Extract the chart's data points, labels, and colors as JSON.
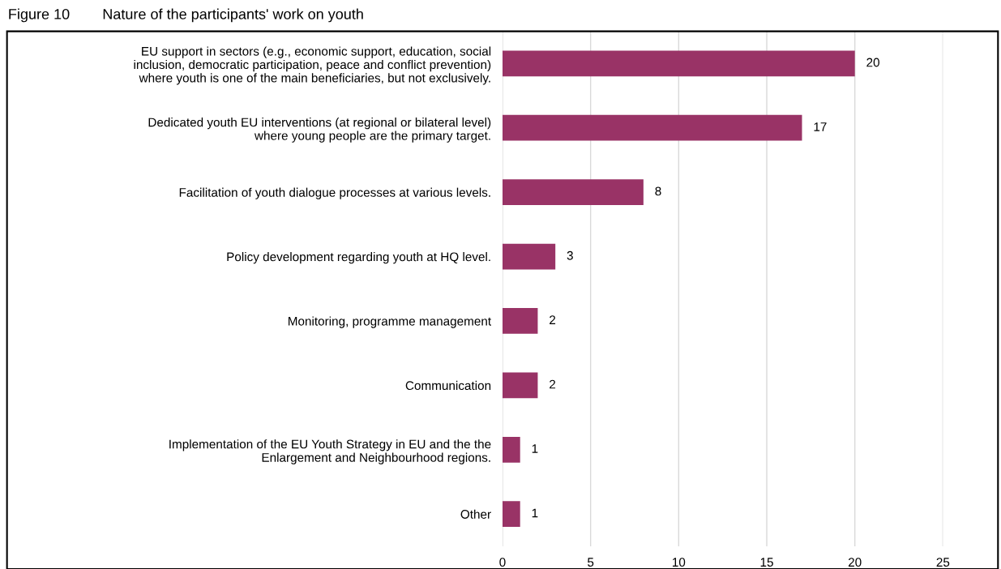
{
  "chart_data": {
    "type": "bar",
    "orientation": "horizontal",
    "title": "Figure 10        Nature of the participants' work on youth",
    "categories": [
      "EU support in sectors (e.g., economic support, education, social\ninclusion, democratic participation, peace and conflict prevention)\nwhere youth is one of the main beneficiaries, but not exclusively.",
      "Dedicated youth EU interventions (at regional or bilateral level)\nwhere young people are the primary target.",
      "Facilitation of youth dialogue processes at various levels.",
      "Policy development regarding youth at HQ level.",
      "Monitoring, programme management",
      "Communication",
      "Implementation of the EU Youth Strategy in EU and the the\nEnlargement and Neighbourhood regions.",
      "Other"
    ],
    "values": [
      20,
      17,
      8,
      3,
      2,
      2,
      1,
      1
    ],
    "color": "#993366",
    "xlim": [
      0,
      25
    ],
    "xticks": [
      0,
      5,
      10,
      15,
      20,
      25
    ],
    "grid": "x",
    "data_labels": true,
    "legend": false
  }
}
